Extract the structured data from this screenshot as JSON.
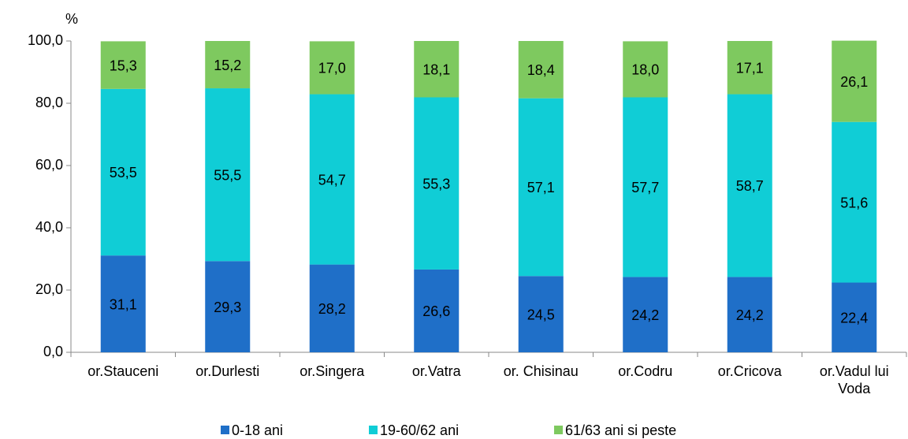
{
  "chart_data": {
    "type": "stacked_bar",
    "y_label": "%",
    "categories": [
      "or.Stauceni",
      "or.Durlesti",
      "or.Singera",
      "or.Vatra",
      "or. Chisinau",
      "or.Codru",
      "or.Cricova",
      "or.Vadul lui Voda"
    ],
    "series": [
      {
        "name": "0-18 ani",
        "color": "#1f6fc8",
        "values": [
          31.1,
          29.3,
          28.2,
          26.6,
          24.5,
          24.2,
          24.2,
          22.4
        ],
        "value_labels": [
          "31,1",
          "29,3",
          "28,2",
          "26,6",
          "24,5",
          "24,2",
          "24,2",
          "22,4"
        ]
      },
      {
        "name": "19-60/62 ani",
        "color": "#10cdd6",
        "values": [
          53.5,
          55.5,
          54.7,
          55.3,
          57.1,
          57.7,
          58.7,
          51.6
        ],
        "value_labels": [
          "53,5",
          "55,5",
          "54,7",
          "55,3",
          "57,1",
          "57,7",
          "58,7",
          "51,6"
        ]
      },
      {
        "name": "61/63 ani si peste",
        "color": "#7ec95f",
        "values": [
          15.3,
          15.2,
          17.0,
          18.1,
          18.4,
          18.0,
          17.1,
          26.1
        ],
        "value_labels": [
          "15,3",
          "15,2",
          "17,0",
          "18,1",
          "18,4",
          "18,0",
          "17,1",
          "26,1"
        ]
      }
    ],
    "ylim": [
      0,
      100
    ],
    "yticks": [
      {
        "value": 0,
        "label": "0,0"
      },
      {
        "value": 20,
        "label": "20,0"
      },
      {
        "value": 40,
        "label": "40,0"
      },
      {
        "value": 60,
        "label": "60,0"
      },
      {
        "value": 80,
        "label": "80,0"
      },
      {
        "value": 100,
        "label": "100,0"
      }
    ],
    "legend": "bottom"
  }
}
